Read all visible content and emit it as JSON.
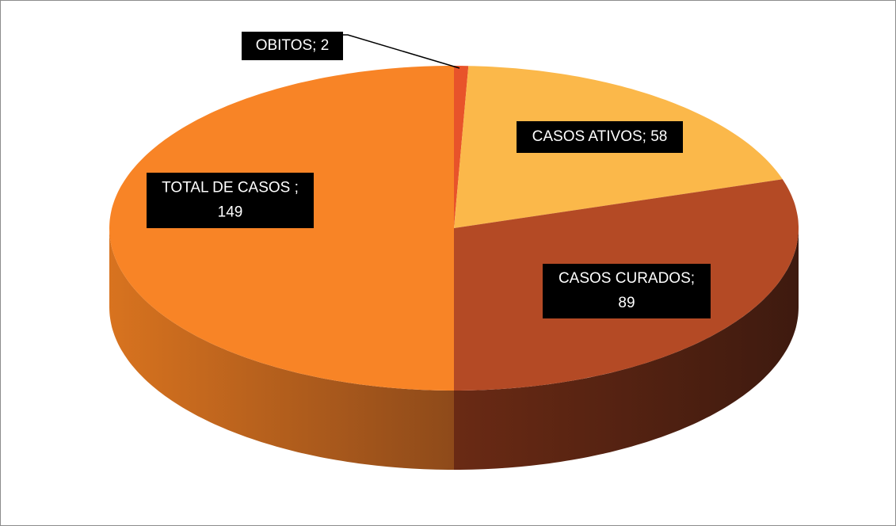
{
  "chart_data": {
    "type": "pie",
    "values": [
      2,
      58,
      89,
      149
    ],
    "value_labels": [
      "OBITOS; 2",
      "CASOS ATIVOS; 58",
      "CASOS CURADOS;\n89",
      "TOTAL DE CASOS ;\n149"
    ],
    "colors": [
      "#e8532a",
      "#fbb84a",
      "#b44a25",
      "#f88426"
    ],
    "side_colors": [
      [
        "#b8401e",
        "#8a2e15"
      ],
      [
        "#c98a30",
        "#a06a20"
      ],
      [
        "#6a2a14",
        "#3e1a0f"
      ],
      [
        "#d8731f",
        "#8e4a1a"
      ]
    ],
    "start_angle": 0,
    "direction": "clockwise",
    "three_d": true
  }
}
